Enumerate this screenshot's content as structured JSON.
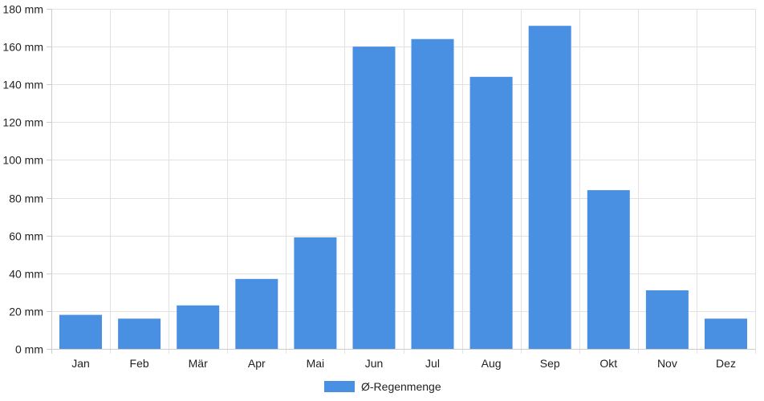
{
  "chart_data": {
    "type": "bar",
    "categories": [
      "Jan",
      "Feb",
      "Mär",
      "Apr",
      "Mai",
      "Jun",
      "Jul",
      "Aug",
      "Sep",
      "Okt",
      "Nov",
      "Dez"
    ],
    "series": [
      {
        "name": "Ø-Regenmenge",
        "values": [
          18,
          16,
          23,
          37,
          59,
          160,
          164,
          144,
          171,
          84,
          31,
          16
        ]
      }
    ],
    "ylim": [
      0,
      180
    ],
    "yticks": [
      0,
      20,
      40,
      60,
      80,
      100,
      120,
      140,
      160,
      180
    ],
    "y_unit": "mm",
    "grid": true,
    "legend_position": "bottom",
    "colors": {
      "bar": "#4a90e2",
      "grid": "#e2e2e2",
      "axis": "#cccccc",
      "text": "#222222"
    }
  }
}
